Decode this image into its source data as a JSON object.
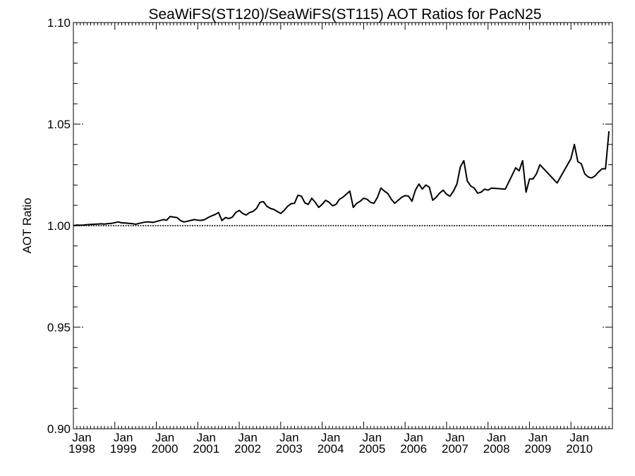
{
  "chart_data": {
    "type": "line",
    "title": "SeaWiFS(ST120)/SeaWiFS(ST115)  AOT Ratios for PacN25",
    "xlabel": "",
    "ylabel": "AOT Ratio",
    "ylim": [
      0.9,
      1.1
    ],
    "xlim": [
      "1998-01",
      "2010-12"
    ],
    "y_ticks": [
      "0.90",
      "0.95",
      "1.00",
      "1.05",
      "1.10"
    ],
    "x_ticks": [
      {
        "top": "Jan",
        "bottom": "1998"
      },
      {
        "top": "Jan",
        "bottom": "1999"
      },
      {
        "top": "Jan",
        "bottom": "2000"
      },
      {
        "top": "Jan",
        "bottom": "2001"
      },
      {
        "top": "Jan",
        "bottom": "2002"
      },
      {
        "top": "Jan",
        "bottom": "2003"
      },
      {
        "top": "Jan",
        "bottom": "2004"
      },
      {
        "top": "Jan",
        "bottom": "2005"
      },
      {
        "top": "Jan",
        "bottom": "2006"
      },
      {
        "top": "Jan",
        "bottom": "2007"
      },
      {
        "top": "Jan",
        "bottom": "2008"
      },
      {
        "top": "Jan",
        "bottom": "2009"
      },
      {
        "top": "Jan",
        "bottom": "2010"
      }
    ],
    "reference_line": 1.0,
    "dashed_gridlines_at": [
      0.95,
      1.05
    ],
    "series": [
      {
        "x": [
          "1998-01",
          "1998-02",
          "1998-03",
          "1998-04",
          "1998-05",
          "1998-06",
          "1998-07",
          "1998-08",
          "1998-09",
          "1998-10",
          "1998-11",
          "1998-12",
          "1999-01",
          "1999-02",
          "1999-03",
          "1999-04",
          "1999-05",
          "1999-06",
          "1999-07",
          "1999-08",
          "1999-09",
          "1999-10",
          "1999-11",
          "1999-12",
          "2000-01",
          "2000-02",
          "2000-03",
          "2000-04",
          "2000-05",
          "2000-06",
          "2000-07",
          "2000-08",
          "2000-09",
          "2000-10",
          "2000-11",
          "2000-12",
          "2001-01",
          "2001-02",
          "2001-03",
          "2001-04",
          "2001-05",
          "2001-06",
          "2001-07",
          "2001-08",
          "2001-09",
          "2001-10",
          "2001-11",
          "2001-12",
          "2002-01",
          "2002-02",
          "2002-03",
          "2002-04",
          "2002-05",
          "2002-06",
          "2002-07",
          "2002-08",
          "2002-09",
          "2002-10",
          "2002-11",
          "2002-12",
          "2003-01",
          "2003-02",
          "2003-03",
          "2003-04",
          "2003-05",
          "2003-06",
          "2003-07",
          "2003-08",
          "2003-09",
          "2003-10",
          "2003-11",
          "2003-12",
          "2004-01",
          "2004-02",
          "2004-03",
          "2004-04",
          "2004-05",
          "2004-06",
          "2004-07",
          "2004-08",
          "2004-09",
          "2004-10",
          "2004-11",
          "2004-12",
          "2005-01",
          "2005-02",
          "2005-03",
          "2005-04",
          "2005-05",
          "2005-06",
          "2005-07",
          "2005-08",
          "2005-09",
          "2005-10",
          "2005-11",
          "2005-12",
          "2006-01",
          "2006-02",
          "2006-03",
          "2006-04",
          "2006-05",
          "2006-06",
          "2006-07",
          "2006-08",
          "2006-09",
          "2006-10",
          "2006-11",
          "2006-12",
          "2007-01",
          "2007-02",
          "2007-03",
          "2007-04",
          "2007-05",
          "2007-06",
          "2007-07",
          "2007-08",
          "2007-09",
          "2007-10",
          "2007-11",
          "2007-12",
          "2008-01",
          "2008-02",
          "2008-06",
          "2008-09",
          "2008-10",
          "2008-11",
          "2008-12",
          "2009-01",
          "2009-02",
          "2009-03",
          "2009-04",
          "2009-09",
          "2010-01",
          "2010-02",
          "2010-03",
          "2010-04",
          "2010-05",
          "2010-06",
          "2010-07",
          "2010-08",
          "2010-09",
          "2010-10",
          "2010-11",
          "2010-12"
        ],
        "y": [
          1.0,
          1.0003,
          1.0002,
          1.0003,
          1.0005,
          1.0006,
          1.0007,
          1.0008,
          1.0009,
          1.0008,
          1.001,
          1.0011,
          1.0015,
          1.0018,
          1.0014,
          1.0013,
          1.0011,
          1.001,
          1.0007,
          1.0011,
          1.0015,
          1.0018,
          1.0018,
          1.0016,
          1.002,
          1.0025,
          1.003,
          1.0027,
          1.0045,
          1.0042,
          1.004,
          1.0025,
          1.0018,
          1.0022,
          1.0026,
          1.003,
          1.0027,
          1.0026,
          1.003,
          1.004,
          1.0048,
          1.0055,
          1.0065,
          1.0025,
          1.004,
          1.0035,
          1.0042,
          1.0065,
          1.0075,
          1.006,
          1.0052,
          1.0065,
          1.007,
          1.0085,
          1.0115,
          1.0118,
          1.0095,
          1.0085,
          1.008,
          1.007,
          1.006,
          1.0075,
          1.0095,
          1.0108,
          1.011,
          1.015,
          1.0145,
          1.0112,
          1.0105,
          1.0135,
          1.0115,
          1.009,
          1.0105,
          1.0125,
          1.0115,
          1.0098,
          1.0105,
          1.013,
          1.014,
          1.0155,
          1.017,
          1.009,
          1.011,
          1.012,
          1.0135,
          1.013,
          1.0115,
          1.011,
          1.014,
          1.0185,
          1.017,
          1.0158,
          1.013,
          1.011,
          1.0125,
          1.014,
          1.0148,
          1.0145,
          1.012,
          1.0175,
          1.0205,
          1.018,
          1.02,
          1.019,
          1.0125,
          1.014,
          1.016,
          1.0175,
          1.0155,
          1.0145,
          1.017,
          1.0205,
          1.029,
          1.032,
          1.022,
          1.0195,
          1.0185,
          1.016,
          1.0165,
          1.018,
          1.0175,
          1.0185,
          1.018,
          1.0285,
          1.027,
          1.032,
          1.0165,
          1.023,
          1.023,
          1.0255,
          1.03,
          1.021,
          1.033,
          1.04,
          1.0315,
          1.0305,
          1.0255,
          1.024,
          1.0235,
          1.0245,
          1.0265,
          1.028,
          1.028,
          1.0465
        ]
      }
    ]
  }
}
